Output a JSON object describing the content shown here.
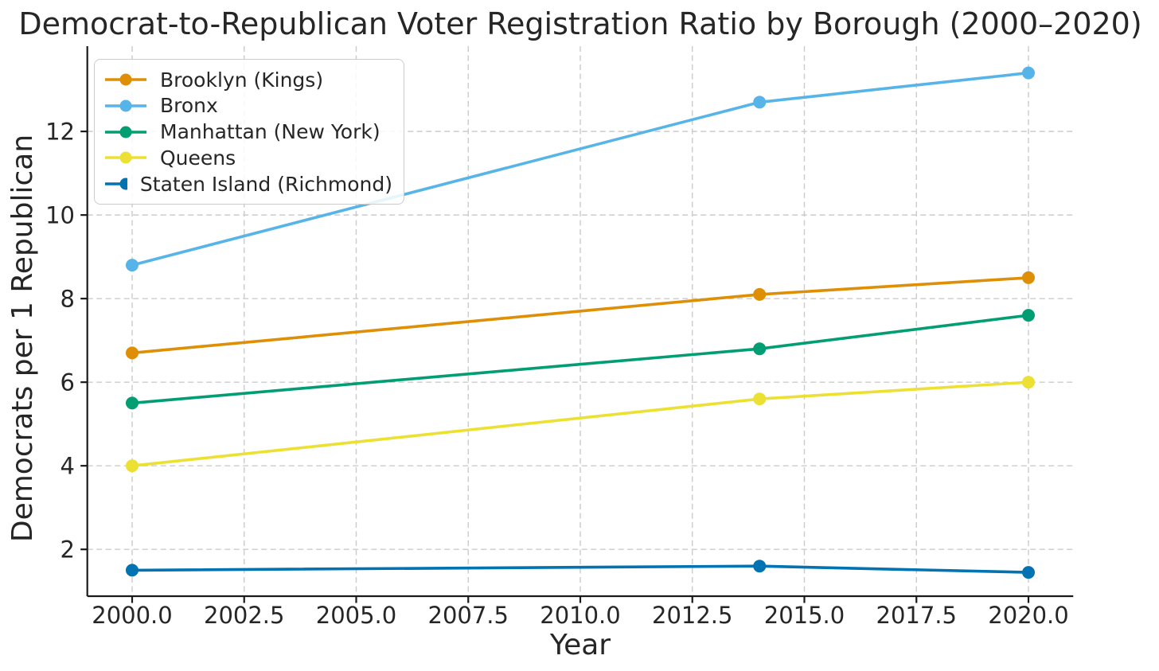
{
  "chart_data": {
    "type": "line",
    "title": "Democrat-to-Republican Voter Registration Ratio by Borough (2000–2020)",
    "xlabel": "Year",
    "ylabel": "Democrats per 1 Republican",
    "x": [
      2000,
      2014,
      2020
    ],
    "series": [
      {
        "name": "Brooklyn (Kings)",
        "color": "#DE8F05",
        "values": [
          6.7,
          8.1,
          8.5
        ]
      },
      {
        "name": "Bronx",
        "color": "#56B4E9",
        "values": [
          8.8,
          12.7,
          13.4
        ]
      },
      {
        "name": "Manhattan (New York)",
        "color": "#029E73",
        "values": [
          5.5,
          6.8,
          7.6
        ]
      },
      {
        "name": "Queens",
        "color": "#ECE133",
        "values": [
          4.0,
          5.6,
          6.0
        ]
      },
      {
        "name": "Staten Island (Richmond)",
        "color": "#0173B2",
        "values": [
          1.5,
          1.6,
          1.45
        ]
      }
    ],
    "xticks": {
      "values": [
        2000,
        2002.5,
        2005,
        2007.5,
        2010,
        2012.5,
        2015,
        2017.5,
        2020
      ],
      "labels": [
        "2000.0",
        "2002.5",
        "2005.0",
        "2007.5",
        "2010.0",
        "2012.5",
        "2015.0",
        "2017.5",
        "2020.0"
      ]
    },
    "yticks": {
      "values": [
        2,
        4,
        6,
        8,
        10,
        12
      ],
      "labels": [
        "2",
        "4",
        "6",
        "8",
        "10",
        "12"
      ]
    },
    "xlim": [
      1999,
      2021
    ],
    "ylim": [
      0.88,
      14.04
    ],
    "grid": {
      "visible": true,
      "style": "dashed",
      "color": "#cbcbcb"
    },
    "legend": {
      "location": "upper left"
    },
    "marker": "circle",
    "line_width": 3.6,
    "marker_radius": 8,
    "text_color": "#262626",
    "spine_color": "#1a1a1a",
    "background_color": "#ffffff"
  }
}
